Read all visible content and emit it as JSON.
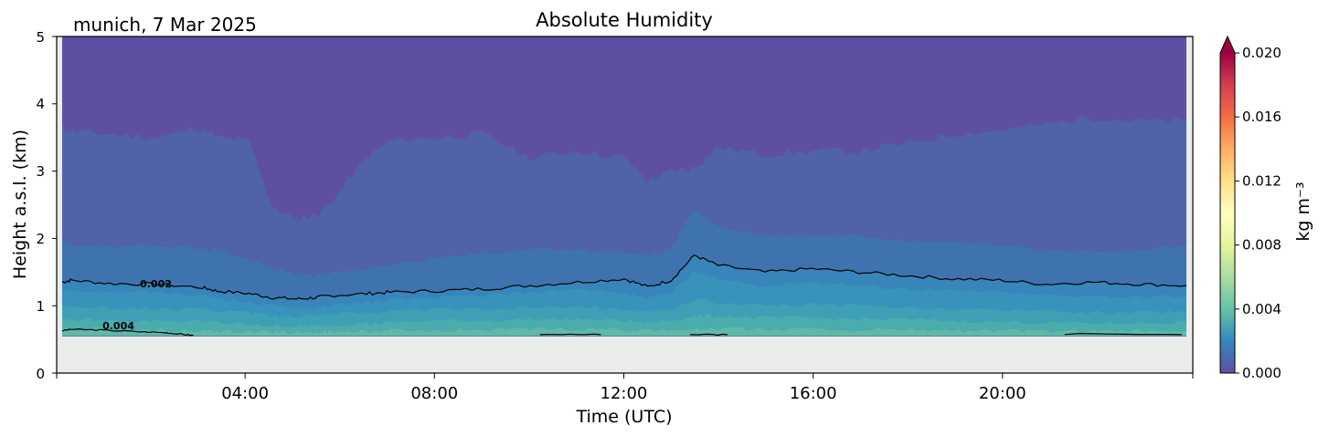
{
  "chart_data": {
    "type": "heatmap",
    "title": "Absolute Humidity",
    "subtitle": "munich, 7 Mar 2025",
    "xlabel": "Time (UTC)",
    "ylabel": "Height a.s.l. (km)",
    "x_ticks": [
      "04:00",
      "08:00",
      "12:00",
      "16:00",
      "20:00"
    ],
    "x_tick_hours": [
      4,
      8,
      12,
      16,
      20
    ],
    "xlim_hours": [
      0,
      24
    ],
    "y_ticks": [
      "0",
      "1",
      "2",
      "3",
      "4",
      "5"
    ],
    "ylim": [
      0,
      5
    ],
    "colorbar": {
      "label": "kg m⁻³",
      "ticks": [
        "0.000",
        "0.004",
        "0.008",
        "0.012",
        "0.016",
        "0.020"
      ],
      "range": [
        0,
        0.02
      ],
      "extend": "max",
      "colormap": "Spectral_r"
    },
    "data_floor_km": 0.55,
    "contours": [
      {
        "level": 0.002,
        "label": "0.002"
      },
      {
        "level": 0.004,
        "label": "0.004"
      }
    ],
    "boundary_hours": [
      0,
      0.2,
      1,
      2,
      3,
      3.3,
      4,
      4.5,
      5,
      5.4,
      5.7,
      6.5,
      7,
      8,
      9,
      10,
      11,
      12,
      12.5,
      13,
      13.5,
      14,
      15,
      16,
      17,
      18,
      19,
      20,
      21,
      22,
      23,
      24
    ],
    "layers": [
      {
        "name": "0.0015-0.002",
        "top_km": [
          1.95,
          1.9,
          1.88,
          1.9,
          1.85,
          1.82,
          1.7,
          1.55,
          1.48,
          1.45,
          1.48,
          1.55,
          1.6,
          1.72,
          1.78,
          1.85,
          1.82,
          1.78,
          1.75,
          1.85,
          2.45,
          2.15,
          2.05,
          2.05,
          2.05,
          1.95,
          1.95,
          1.9,
          1.82,
          1.8,
          1.82,
          1.92
        ]
      },
      {
        "name": "0.001-0.0015",
        "top_km": [
          3.65,
          3.6,
          3.55,
          3.5,
          3.65,
          3.5,
          3.45,
          2.45,
          2.3,
          2.35,
          2.5,
          3.2,
          3.45,
          3.5,
          3.55,
          3.2,
          3.3,
          3.2,
          2.85,
          3.0,
          3.05,
          3.35,
          3.25,
          3.3,
          3.3,
          3.4,
          3.55,
          3.6,
          3.7,
          3.8,
          3.75,
          3.75
        ]
      },
      {
        "name": "0.0025-0.003",
        "top_km": [
          1.25,
          1.22,
          1.2,
          1.2,
          1.15,
          1.12,
          1.05,
          1.0,
          0.98,
          0.98,
          1.0,
          1.05,
          1.08,
          1.12,
          1.15,
          1.2,
          1.25,
          1.18,
          1.12,
          1.2,
          1.5,
          1.4,
          1.3,
          1.35,
          1.3,
          1.25,
          1.22,
          1.2,
          1.15,
          1.15,
          1.12,
          1.15
        ]
      },
      {
        "name": "0.003-0.0035",
        "top_km": [
          1.0,
          0.98,
          0.97,
          0.96,
          0.95,
          0.93,
          0.9,
          0.85,
          0.85,
          0.86,
          0.88,
          0.9,
          0.92,
          0.95,
          0.95,
          0.98,
          1.0,
          0.95,
          0.9,
          0.95,
          1.1,
          1.05,
          1.0,
          1.02,
          1.0,
          0.98,
          0.95,
          0.94,
          0.92,
          0.9,
          0.9,
          0.92
        ]
      },
      {
        "name": "0.0035-0.004",
        "top_km": [
          0.82,
          0.8,
          0.78,
          0.78,
          0.77,
          0.75,
          0.72,
          0.7,
          0.7,
          0.7,
          0.72,
          0.74,
          0.75,
          0.78,
          0.78,
          0.8,
          0.8,
          0.78,
          0.75,
          0.78,
          0.85,
          0.85,
          0.82,
          0.82,
          0.8,
          0.8,
          0.78,
          0.76,
          0.75,
          0.74,
          0.74,
          0.76
        ]
      },
      {
        "name": "0.004-0.0045",
        "top_km": [
          0.68,
          0.66,
          0.65,
          0.64,
          0.63,
          0.62,
          0.62,
          0.61,
          0.6,
          0.6,
          0.61,
          0.62,
          0.63,
          0.64,
          0.64,
          0.65,
          0.65,
          0.64,
          0.63,
          0.64,
          0.66,
          0.66,
          0.65,
          0.65,
          0.64,
          0.64,
          0.63,
          0.63,
          0.62,
          0.62,
          0.62,
          0.63
        ]
      }
    ],
    "contour_002_km": [
      1.35,
      1.38,
      1.33,
      1.32,
      1.27,
      1.22,
      1.18,
      1.12,
      1.1,
      1.12,
      1.15,
      1.18,
      1.2,
      1.22,
      1.25,
      1.3,
      1.35,
      1.4,
      1.28,
      1.38,
      1.75,
      1.6,
      1.5,
      1.55,
      1.5,
      1.45,
      1.4,
      1.38,
      1.32,
      1.35,
      1.32,
      1.3
    ],
    "contour_004_hours": [
      0,
      0.2,
      0.8,
      1.5,
      2.2,
      2.5,
      2.8
    ],
    "contour_004_km": [
      0.63,
      0.65,
      0.64,
      0.62,
      0.6,
      0.58,
      0.56
    ]
  },
  "colors": {
    "background": "#ffffff",
    "floor": "#eaebeb",
    "layer_0.0005-0.001": "#5e4fa2",
    "layer_0.001-0.0015": "#4f62aa",
    "layer_0.0015-0.002": "#3f73b0",
    "layer_0.002-0.0025": "#3885bb",
    "layer_0.0025-0.003": "#3892bb",
    "layer_0.003-0.0035": "#3f9fb4",
    "layer_0.0035-0.004": "#4aacac",
    "layer_0.004-0.0045": "#5fb9a6",
    "contour": "#000000"
  }
}
